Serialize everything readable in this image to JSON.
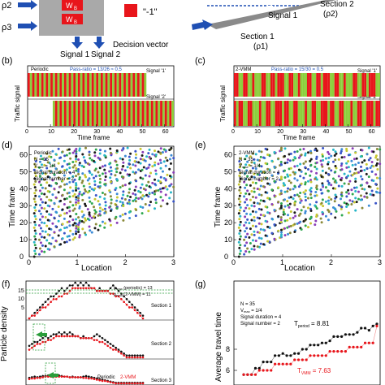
{
  "header": {
    "rho2": "ρ2",
    "rho3": "ρ3",
    "w_top": "W",
    "w_bot": "W",
    "w_sub": "B",
    "minus_one": "\"-1\"",
    "signal_1": "Signal 1",
    "signal_2": "Signal 2",
    "decision_vector": "Decision vector",
    "road_signal_1": "Signal 1",
    "section_1": "Section 1",
    "rho1": "(ρ1)",
    "section_2": "Section 2",
    "rho2_paren": "(ρ2)"
  },
  "colors": {
    "red": "#e8151b",
    "green": "#8ccf3c",
    "blue": "#1f4fb3"
  },
  "chart_data": [
    {
      "panel": "b",
      "panel_label": "(b)",
      "type": "heatmap",
      "method": "Periodic",
      "pass_ratio": "Pass-ratio = 13/26 ≈ 0.5",
      "ylabel": "Traffic signal",
      "xlabel": "Time frame",
      "xticks": [
        "0",
        "10",
        "20",
        "30",
        "40",
        "50",
        "60"
      ],
      "xlim": [
        0,
        64
      ],
      "rows": [
        {
          "name": "Signal '1'",
          "filled_until": 52,
          "pattern": "alternate"
        },
        {
          "name": "Signal '2'",
          "filled_from": 11,
          "pattern": "alternate"
        }
      ]
    },
    {
      "panel": "c",
      "panel_label": "(c)",
      "type": "heatmap",
      "method": "2-VMM",
      "pass_ratio": "Pass-ratio = 15/30 = 0.5",
      "ylabel": "Traffic signal",
      "xlabel": "Time frame",
      "xticks": [
        "0",
        "10",
        "20",
        "30",
        "40",
        "50",
        "60"
      ],
      "xlim": [
        0,
        64
      ],
      "rows": [
        {
          "name": "Signal '1'",
          "filled_until": 64,
          "pattern": "blocks"
        },
        {
          "name": "Signal '2'",
          "filled_until": 64,
          "pattern": "blocks"
        }
      ]
    },
    {
      "panel": "d",
      "panel_label": "(d)",
      "type": "scatter",
      "xlabel": "Location",
      "ylabel": "Time frame",
      "xlim": [
        0,
        3
      ],
      "ylim": [
        0,
        65
      ],
      "xticks": [
        "0",
        "1",
        "2",
        "3"
      ],
      "yticks": [
        "0",
        "10",
        "20",
        "30",
        "40",
        "50",
        "60"
      ],
      "legend": [
        "Periodic",
        "N = 35",
        "V",
        "max",
        " = 1/4",
        "Signal duration = 4",
        "Signal number = 2"
      ]
    },
    {
      "panel": "e",
      "panel_label": "(e)",
      "type": "scatter",
      "xlabel": "Location",
      "ylabel": "Time frame",
      "xlim": [
        0,
        3
      ],
      "ylim": [
        0,
        65
      ],
      "xticks": [
        "0",
        "1",
        "2",
        "3"
      ],
      "yticks": [
        "0",
        "10",
        "20",
        "30",
        "40",
        "50",
        "60"
      ],
      "legend": [
        "2-VMM",
        "N = 35",
        "V",
        "max",
        " = 1/4",
        "Signal duration = 4",
        "Signal number = 2"
      ]
    },
    {
      "panel": "f",
      "panel_label": "(f)",
      "type": "line",
      "ylabel": "Particle density",
      "yticks": [
        "5",
        "10",
        "15"
      ],
      "ylim": [
        0,
        16
      ],
      "annotations": [
        "ρ",
        "max",
        " (periodic) = 13",
        "ρ",
        "max",
        " (2-VMM) = 11"
      ],
      "sections": [
        "Section 1",
        "Section 2",
        "Section 3"
      ],
      "legend": [
        "Periodic",
        "2-VMM"
      ],
      "series": [
        {
          "name": "Periodic",
          "values": [
            0,
            1,
            2,
            3,
            4,
            5,
            6,
            7,
            8,
            8,
            9,
            10,
            11,
            10,
            11,
            12,
            12,
            13,
            12,
            13,
            12,
            13,
            12,
            11,
            11,
            10,
            11,
            10,
            10,
            10,
            11,
            12,
            11,
            10,
            9,
            8,
            7,
            6,
            5,
            4,
            3,
            2,
            1
          ]
        },
        {
          "name": "2-VMM",
          "values": [
            0,
            1,
            1,
            2,
            3,
            4,
            4,
            5,
            6,
            7,
            7,
            8,
            8,
            9,
            9,
            10,
            11,
            11,
            11,
            11,
            11,
            11,
            11,
            11,
            11,
            10,
            10,
            10,
            10,
            10,
            9,
            9,
            8,
            8,
            7,
            6,
            5,
            4,
            4,
            3,
            2,
            1,
            0
          ]
        }
      ]
    },
    {
      "panel": "g",
      "panel_label": "(g)",
      "type": "line",
      "ylabel": "Average travel time",
      "yticks": [
        "6",
        "8"
      ],
      "legend": [
        "N = 35",
        "V",
        "max",
        " = 1/4",
        "Signal duration = 4",
        "Signal number = 2"
      ],
      "annotations": [
        "T",
        "period",
        " = 8.81",
        "T",
        "VMM",
        " = 7.63"
      ],
      "series": [
        {
          "name": "period",
          "values": [
            5.6,
            5.6,
            5.6,
            6.2,
            6.2,
            6.8,
            6.8,
            6.8,
            7.4,
            7.4,
            7.6,
            7.4,
            7.4,
            7.6,
            7.6,
            8.0,
            8.0,
            8.4,
            8.4,
            8.4,
            8.6,
            8.6,
            8.8,
            9.2,
            9.2,
            9.2,
            9.4,
            9.4,
            9.4,
            9.6,
            10.0,
            10.0,
            9.8,
            10.2,
            10.4
          ]
        },
        {
          "name": "VMM",
          "values": [
            5.6,
            5.6,
            5.6,
            5.6,
            6.0,
            6.0,
            6.0,
            6.0,
            6.6,
            6.6,
            6.6,
            6.6,
            6.6,
            7.0,
            7.0,
            7.0,
            7.0,
            7.4,
            7.4,
            7.4,
            7.4,
            7.4,
            7.8,
            7.8,
            7.8,
            7.8,
            7.8,
            8.2,
            8.2,
            8.2,
            8.2,
            8.6,
            8.6,
            8.6,
            10.2
          ]
        }
      ]
    }
  ]
}
